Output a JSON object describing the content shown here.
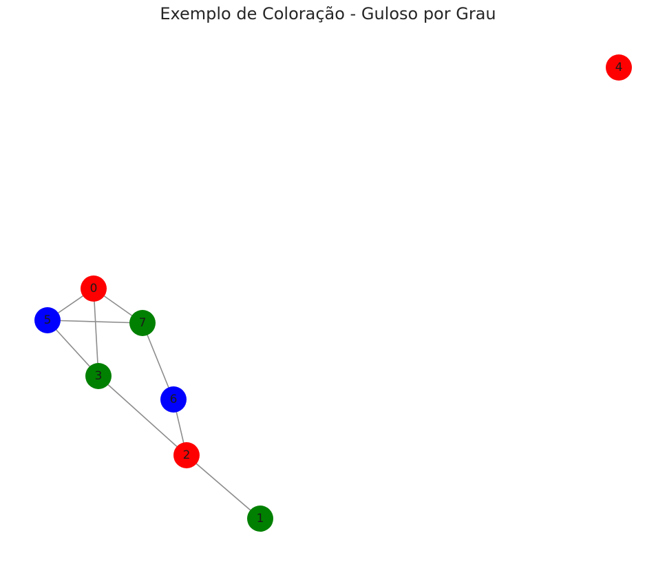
{
  "title": "Exemplo de Coloração - Guloso por Grau",
  "colors": {
    "red": "#ff0000",
    "green": "#008000",
    "blue": "#0000ff",
    "edge": "#8c8c8c"
  },
  "graph": {
    "nodes": [
      {
        "id": "0",
        "label": "0",
        "color": "red"
      },
      {
        "id": "1",
        "label": "1",
        "color": "green"
      },
      {
        "id": "2",
        "label": "2",
        "color": "red"
      },
      {
        "id": "3",
        "label": "3",
        "color": "green"
      },
      {
        "id": "4",
        "label": "4",
        "color": "red"
      },
      {
        "id": "5",
        "label": "5",
        "color": "blue"
      },
      {
        "id": "6",
        "label": "6",
        "color": "blue"
      },
      {
        "id": "7",
        "label": "7",
        "color": "green"
      }
    ],
    "edges": [
      [
        "0",
        "5"
      ],
      [
        "0",
        "7"
      ],
      [
        "0",
        "3"
      ],
      [
        "5",
        "7"
      ],
      [
        "5",
        "3"
      ],
      [
        "7",
        "6"
      ],
      [
        "3",
        "2"
      ],
      [
        "6",
        "2"
      ],
      [
        "2",
        "1"
      ]
    ]
  }
}
